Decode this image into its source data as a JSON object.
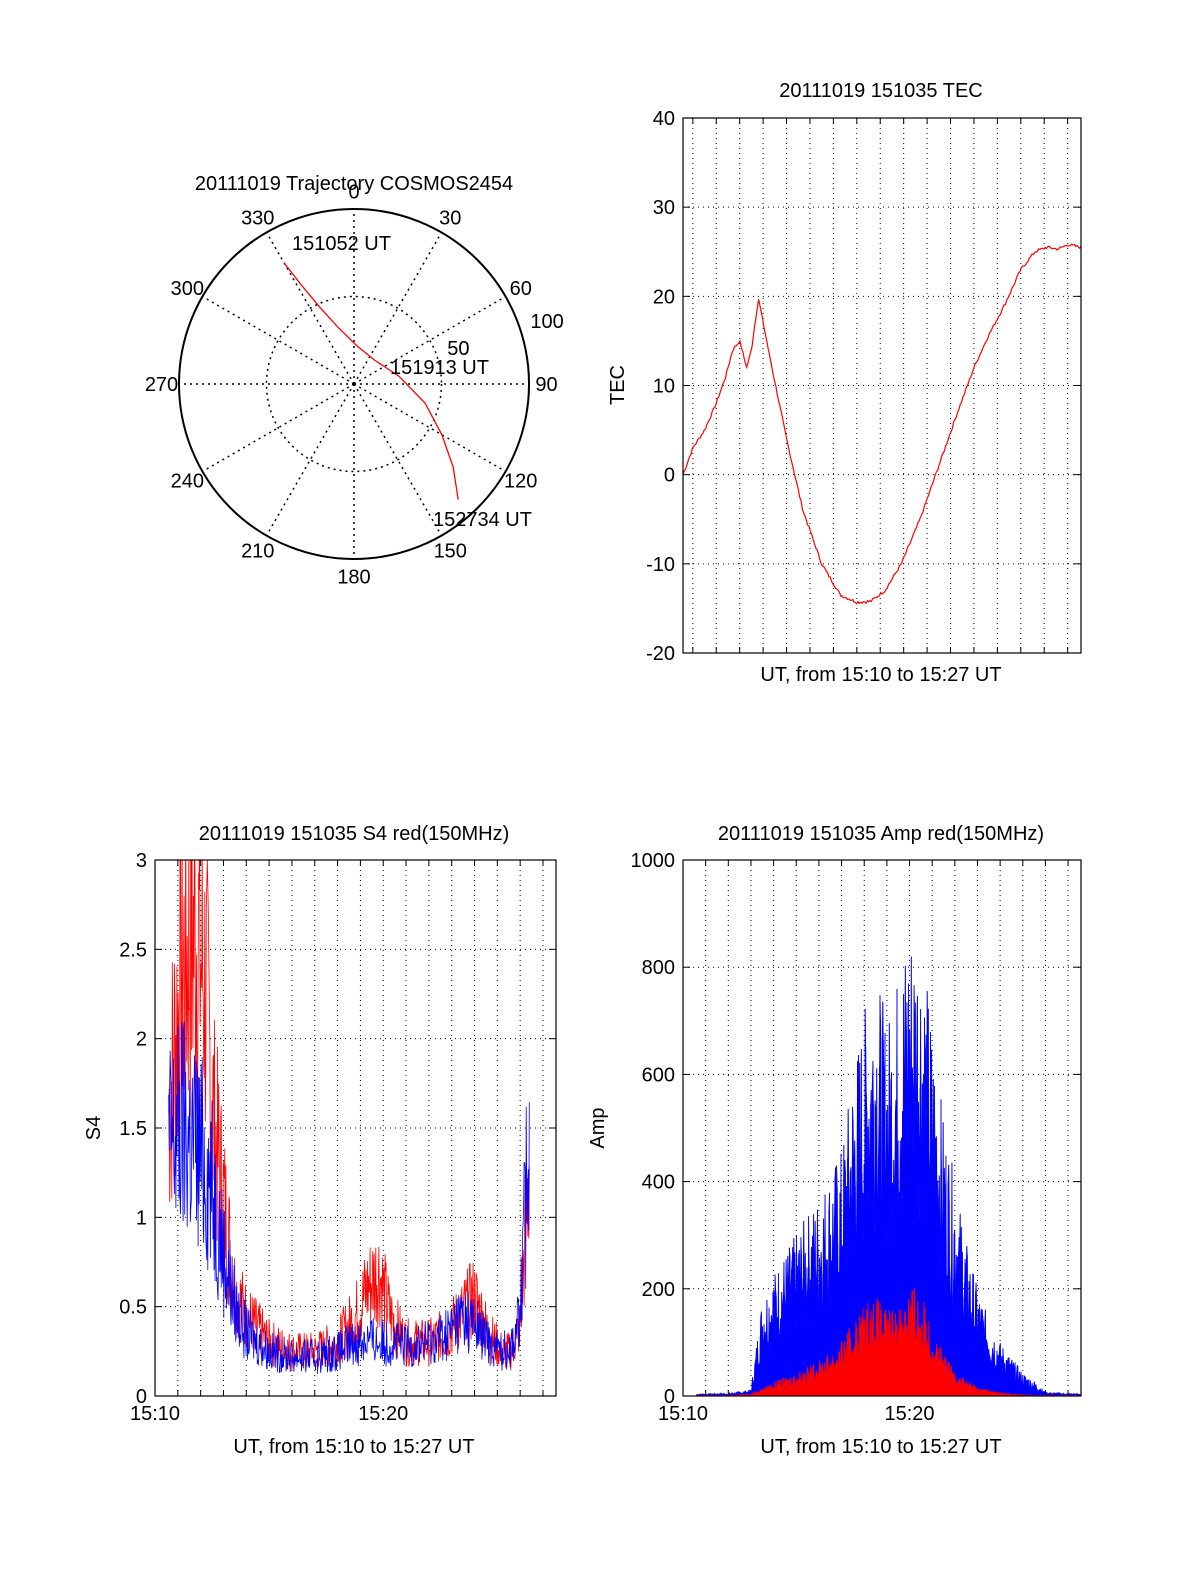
{
  "colors": {
    "red": "#ff0000",
    "blue": "#0000ff",
    "axis": "#000000",
    "grid": "#000000"
  },
  "chart_data": [
    {
      "id": "trajectory",
      "type": "polar",
      "title": "20111019 Trajectory COSMOS2454",
      "angle_labels": [
        "0",
        "30",
        "60",
        "90",
        "120",
        "150",
        "180",
        "210",
        "240",
        "270",
        "300",
        "330"
      ],
      "radial_labels": [
        "50",
        "100"
      ],
      "rlim": [
        0,
        100
      ],
      "grid": true,
      "series": [
        {
          "color": "red",
          "points": [
            [
              330,
              80
            ],
            [
              332,
              64
            ],
            [
              336,
              48
            ],
            [
              344,
              34
            ],
            [
              4,
              22
            ],
            [
              40,
              18
            ],
            [
              80,
              26
            ],
            [
              105,
              42
            ],
            [
              120,
              58
            ],
            [
              130,
              74
            ],
            [
              138,
              89
            ]
          ]
        }
      ],
      "annotations": [
        "151052 UT",
        "151913 UT",
        "152734 UT"
      ]
    },
    {
      "id": "tec",
      "type": "line",
      "title": "20111019 151035 TEC",
      "xlabel": "UT, from 15:10 to 15:27 UT",
      "ylabel": "TEC",
      "xlim": [
        10.58,
        27.57
      ],
      "ylim": [
        -20,
        40
      ],
      "yticks": [
        -20,
        -10,
        0,
        10,
        20,
        30,
        40
      ],
      "grid": true,
      "series": [
        {
          "color": "red",
          "x": [
            10.58,
            11.0,
            11.5,
            12.0,
            12.4,
            12.7,
            13.0,
            13.3,
            13.5,
            13.8,
            14.3,
            15.0,
            15.7,
            16.5,
            17.3,
            18.0,
            18.6,
            19.2,
            19.9,
            20.7,
            21.5,
            22.3,
            23.0,
            23.6,
            24.3,
            25.0,
            25.6,
            26.1,
            26.6,
            27.0,
            27.57
          ],
          "y": [
            0,
            3,
            5,
            8,
            11,
            14,
            15,
            12,
            14,
            19.8,
            13,
            4,
            -4,
            -10,
            -13.5,
            -14.3,
            -14.2,
            -13,
            -10,
            -5,
            1,
            7,
            12,
            15.5,
            19,
            23,
            25,
            25.5,
            25.3,
            25.8,
            25.5
          ]
        }
      ]
    },
    {
      "id": "s4",
      "type": "line",
      "title": "20111019 151035 S4 red(150MHz)",
      "xlabel": "UT, from 15:10 to 15:27 UT",
      "ylabel": "S4",
      "xlim": [
        10,
        27.57
      ],
      "ylim": [
        0,
        3
      ],
      "xticks": [
        "15:10",
        "15:20"
      ],
      "yticks": [
        "0",
        "0.5",
        "1",
        "1.5",
        "2",
        "2.5",
        "3"
      ],
      "grid": true,
      "series": [
        {
          "color": "red",
          "x": [
            10.6,
            11.2,
            11.8,
            12.2,
            12.6,
            13.0,
            13.5,
            14.0,
            15.0,
            16.0,
            17.0,
            18.0,
            18.8,
            19.3,
            19.8,
            20.3,
            21.0,
            22.0,
            22.8,
            23.4,
            24.0,
            24.6,
            25.2,
            25.6,
            26.0,
            26.4
          ],
          "y": [
            1.6,
            2.4,
            2.6,
            2.3,
            1.5,
            1.1,
            0.6,
            0.45,
            0.3,
            0.25,
            0.25,
            0.3,
            0.45,
            0.6,
            0.7,
            0.45,
            0.3,
            0.3,
            0.35,
            0.45,
            0.55,
            0.35,
            0.25,
            0.25,
            0.4,
            1.3
          ]
        },
        {
          "color": "blue",
          "x": [
            10.6,
            11.2,
            11.8,
            12.2,
            12.6,
            13.0,
            13.5,
            14.0,
            15.0,
            16.0,
            17.0,
            18.0,
            18.8,
            19.3,
            19.8,
            20.3,
            21.0,
            22.0,
            22.8,
            23.4,
            24.0,
            24.6,
            25.2,
            25.6,
            26.0,
            26.4
          ],
          "y": [
            1.4,
            1.5,
            1.4,
            1.3,
            1.1,
            0.8,
            0.5,
            0.35,
            0.25,
            0.22,
            0.22,
            0.25,
            0.3,
            0.32,
            0.3,
            0.3,
            0.28,
            0.3,
            0.35,
            0.45,
            0.4,
            0.3,
            0.25,
            0.28,
            0.45,
            1.5
          ]
        }
      ]
    },
    {
      "id": "amp",
      "type": "area",
      "title": "20111019 151035 Amp red(150MHz)",
      "xlabel": "UT, from 15:10 to 15:27 UT",
      "ylabel": "Amp",
      "xlim": [
        10,
        27.57
      ],
      "ylim": [
        0,
        1000
      ],
      "xticks": [
        "15:10",
        "15:20"
      ],
      "yticks": [
        "0",
        "200",
        "400",
        "600",
        "800",
        "1000"
      ],
      "grid": true,
      "series": [
        {
          "color": "blue",
          "x": [
            10.6,
            12.0,
            13.0,
            13.5,
            14.0,
            15.0,
            16.0,
            17.0,
            17.5,
            18.0,
            18.5,
            19.0,
            19.5,
            20.0,
            20.5,
            21.0,
            21.5,
            22.0,
            22.5,
            23.0,
            23.5,
            24.0,
            24.5,
            25.0,
            25.5,
            26.0,
            27.57
          ],
          "y": [
            3,
            4,
            8,
            130,
            160,
            210,
            260,
            320,
            420,
            500,
            560,
            480,
            550,
            620,
            600,
            480,
            360,
            280,
            200,
            140,
            100,
            70,
            50,
            30,
            20,
            5,
            3
          ]
        },
        {
          "color": "red",
          "x": [
            10.6,
            12.0,
            13.0,
            13.5,
            14.0,
            15.0,
            16.0,
            17.0,
            17.5,
            18.0,
            18.5,
            19.0,
            19.5,
            20.0,
            20.5,
            21.0,
            21.5,
            22.0,
            22.5,
            23.0,
            23.5,
            24.0,
            24.5,
            25.0,
            25.5,
            26.0,
            27.57
          ],
          "y": [
            1,
            1,
            3,
            10,
            18,
            30,
            45,
            70,
            95,
            120,
            130,
            110,
            120,
            150,
            135,
            90,
            55,
            35,
            22,
            12,
            8,
            5,
            3,
            2,
            1,
            1,
            1
          ]
        }
      ]
    }
  ]
}
